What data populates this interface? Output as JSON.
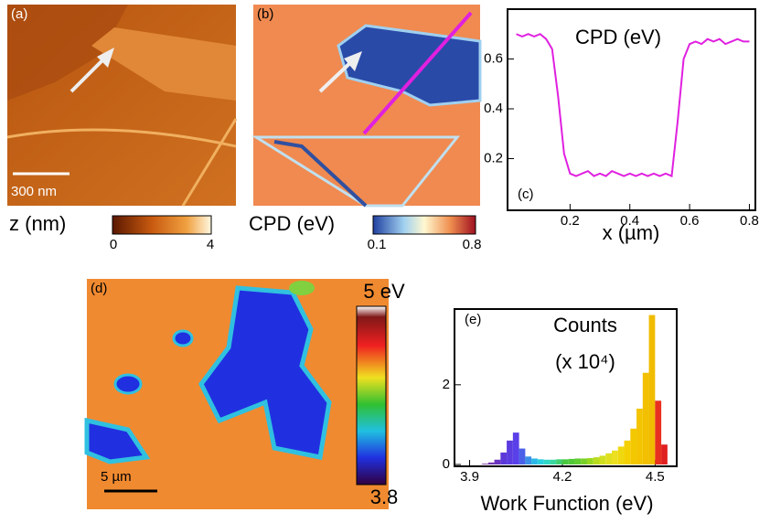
{
  "chart_data": [
    {
      "type": "line",
      "panel_label": "(c)",
      "annotation": "CPD (eV)",
      "x_label": "x (µm)",
      "x": [
        0.02,
        0.04,
        0.06,
        0.08,
        0.1,
        0.12,
        0.14,
        0.16,
        0.18,
        0.2,
        0.22,
        0.24,
        0.26,
        0.28,
        0.3,
        0.32,
        0.34,
        0.36,
        0.38,
        0.4,
        0.42,
        0.44,
        0.46,
        0.48,
        0.5,
        0.52,
        0.54,
        0.56,
        0.58,
        0.6,
        0.62,
        0.64,
        0.66,
        0.68,
        0.7,
        0.72,
        0.74,
        0.76,
        0.78,
        0.8
      ],
      "series": [
        {
          "color": "#e020e0",
          "values": [
            0.7,
            0.69,
            0.7,
            0.69,
            0.7,
            0.68,
            0.64,
            0.45,
            0.22,
            0.14,
            0.13,
            0.14,
            0.15,
            0.13,
            0.14,
            0.13,
            0.15,
            0.14,
            0.13,
            0.14,
            0.13,
            0.14,
            0.13,
            0.14,
            0.13,
            0.14,
            0.13,
            0.35,
            0.6,
            0.66,
            0.67,
            0.66,
            0.68,
            0.67,
            0.68,
            0.66,
            0.67,
            0.68,
            0.67,
            0.67
          ]
        }
      ],
      "xlim": [
        0,
        0.82
      ],
      "ylim": [
        0,
        0.8
      ],
      "xticks": [
        0.2,
        0.4,
        0.6,
        0.8
      ],
      "yticks": [
        0.2,
        0.4,
        0.6
      ]
    },
    {
      "type": "histogram",
      "panel_label": "(e)",
      "annotation": [
        "Counts",
        "(x 10⁴)"
      ],
      "x_label": "Work Function (eV)",
      "bins": [
        3.94,
        3.96,
        3.98,
        4.0,
        4.02,
        4.04,
        4.06,
        4.08,
        4.1,
        4.12,
        4.14,
        4.16,
        4.18,
        4.2,
        4.22,
        4.24,
        4.26,
        4.28,
        4.3,
        4.32,
        4.34,
        4.36,
        4.38,
        4.4,
        4.42,
        4.44,
        4.46,
        4.48,
        4.5,
        4.52,
        4.54
      ],
      "counts": [
        0.02,
        0.05,
        0.12,
        0.3,
        0.6,
        0.8,
        0.4,
        0.2,
        0.15,
        0.13,
        0.12,
        0.12,
        0.13,
        0.13,
        0.14,
        0.15,
        0.15,
        0.16,
        0.18,
        0.22,
        0.28,
        0.35,
        0.45,
        0.6,
        0.9,
        1.4,
        2.3,
        3.75,
        1.6,
        0.5
      ],
      "colors": [
        "#7a3aa0",
        "#7436b0",
        "#6a34c0",
        "#5c38d8",
        "#5a3ce0",
        "#5a40e8",
        "#4a60e8",
        "#3a90e8",
        "#2ab8e8",
        "#2ad0e0",
        "#30d8c8",
        "#3ad8a0",
        "#40d070",
        "#48c840",
        "#50c838",
        "#60cc30",
        "#78d028",
        "#98d820",
        "#b8dc20",
        "#d0e020",
        "#e0e020",
        "#ece020",
        "#f0d810",
        "#f4d000",
        "#f4c800",
        "#f4c400",
        "#f2c000",
        "#f0bc00",
        "#e83020",
        "#e02020"
      ],
      "xlim": [
        3.86,
        4.57
      ],
      "ylim": [
        0,
        3.9
      ],
      "xticks": [
        3.9,
        4.2,
        4.5
      ],
      "yticks": [
        0,
        2
      ]
    }
  ],
  "images": {
    "a": {
      "label": "(a)",
      "scale_bar": "300 nm",
      "colorbar": {
        "title": "z (nm)",
        "ticks": [
          0,
          4
        ]
      }
    },
    "b": {
      "label": "(b)",
      "colorbar": {
        "title": "CPD (eV)",
        "ticks": [
          0.1,
          0.8
        ]
      }
    },
    "d": {
      "label": "(d)",
      "scale_bar": "5 µm",
      "colorbar": {
        "ticks": [
          {
            "value": 5,
            "label": "5 eV"
          },
          3.8
        ]
      }
    }
  }
}
